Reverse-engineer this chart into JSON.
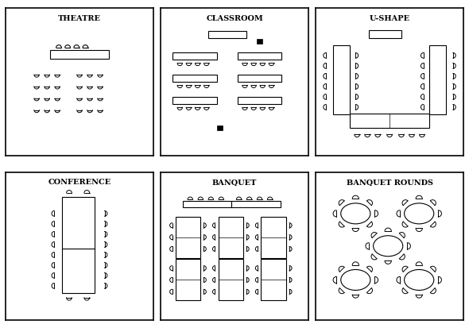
{
  "panels": [
    {
      "title": "THEATRE",
      "col": 0,
      "row": 0
    },
    {
      "title": "CLASSROOM",
      "col": 1,
      "row": 0
    },
    {
      "title": "U-SHAPE",
      "col": 2,
      "row": 0
    },
    {
      "title": "CONFERENCE",
      "col": 0,
      "row": 1
    },
    {
      "title": "BANQUET",
      "col": 1,
      "row": 1
    },
    {
      "title": "BANQUET ROUNDS",
      "col": 2,
      "row": 1
    }
  ],
  "bg_color": "#ffffff"
}
